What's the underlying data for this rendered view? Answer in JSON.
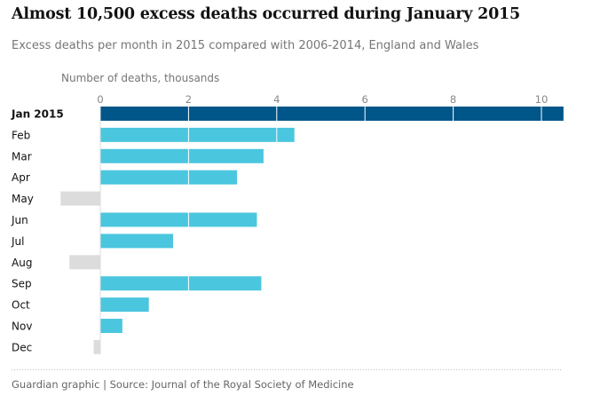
{
  "title": "Almost 10,500 excess deaths occurred during January 2015",
  "subtitle": "Excess deaths per month in 2015 compared with 2006-2014, England and Wales",
  "footer": "Guardian graphic | Source: Journal of the Royal Society of Medicine",
  "chart_data": {
    "type": "bar",
    "orientation": "horizontal",
    "xlabel": "Number of deaths, thousands",
    "ylabel": "",
    "xlim": [
      0,
      10.5
    ],
    "xticks": [
      0,
      2,
      4,
      6,
      8,
      10
    ],
    "grid": true,
    "categories": [
      "Jan 2015",
      "Feb",
      "Mar",
      "Apr",
      "May",
      "Jun",
      "Jul",
      "Aug",
      "Sep",
      "Oct",
      "Nov",
      "Dec"
    ],
    "values": [
      10.5,
      4.4,
      3.7,
      3.1,
      -0.9,
      3.55,
      1.65,
      -0.7,
      3.65,
      1.1,
      0.5,
      -0.15
    ],
    "highlight_category": "Jan 2015"
  },
  "colors": {
    "highlight": "#005689",
    "positive": "#4bc6df",
    "negative": "#dcdcdc",
    "gridline": "#ffffff",
    "divider": "#bdbdbd"
  }
}
